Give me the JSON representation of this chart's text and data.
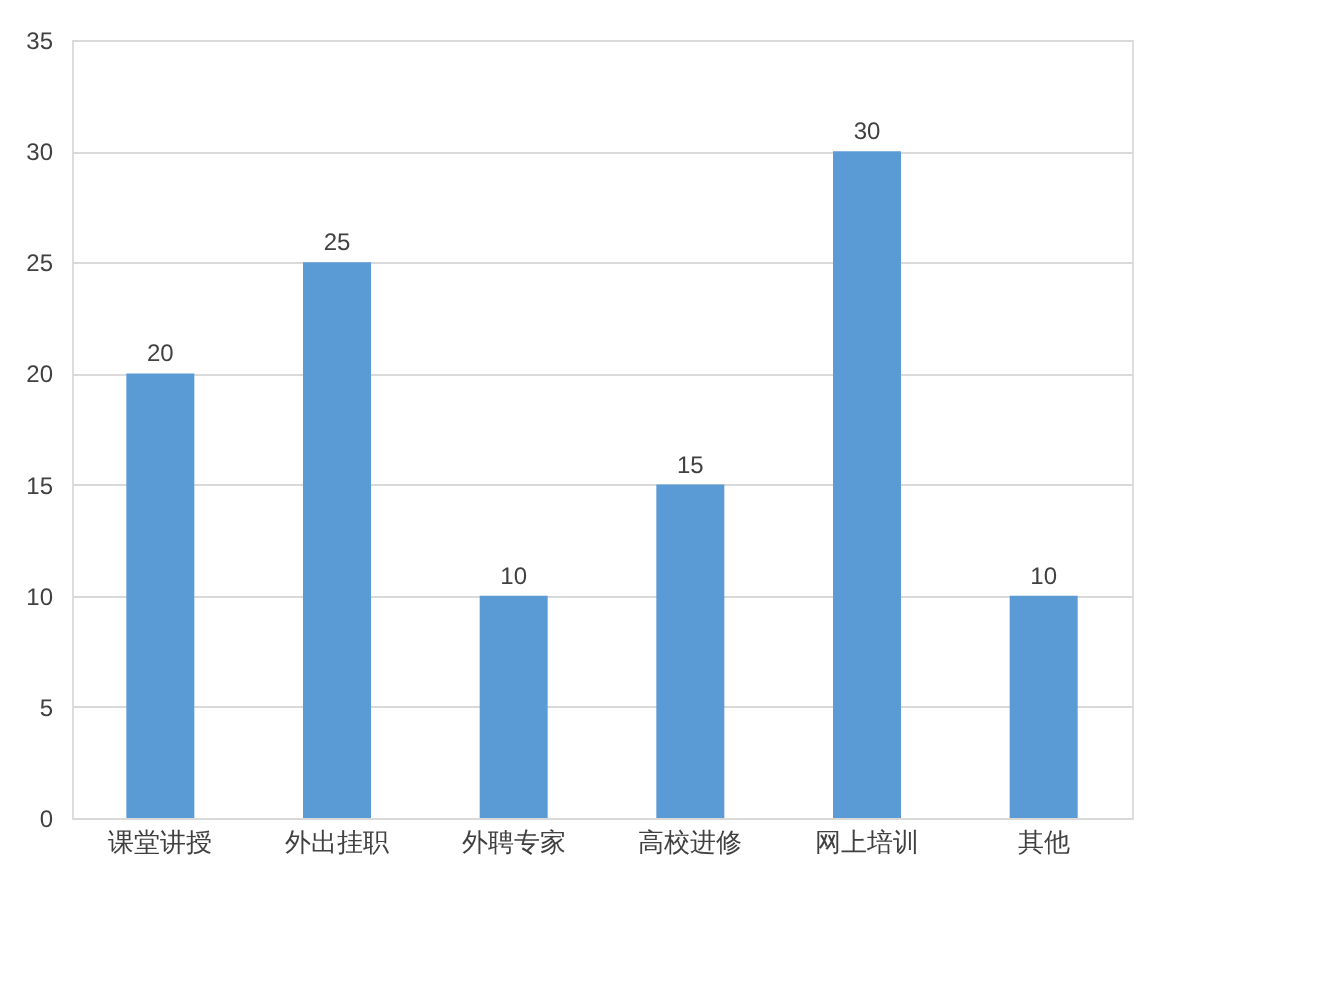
{
  "chart_data": {
    "type": "bar",
    "categories": [
      "课堂讲授",
      "外出挂职",
      "外聘专家",
      "高校进修",
      "网上培训",
      "其他"
    ],
    "values": [
      20,
      25,
      10,
      15,
      30,
      10
    ],
    "color": "#5b9bd5",
    "ylim": [
      0,
      35
    ],
    "yticks": [
      0,
      5,
      10,
      15,
      20,
      25,
      30,
      35
    ],
    "grid": "y",
    "data_labels": true
  }
}
